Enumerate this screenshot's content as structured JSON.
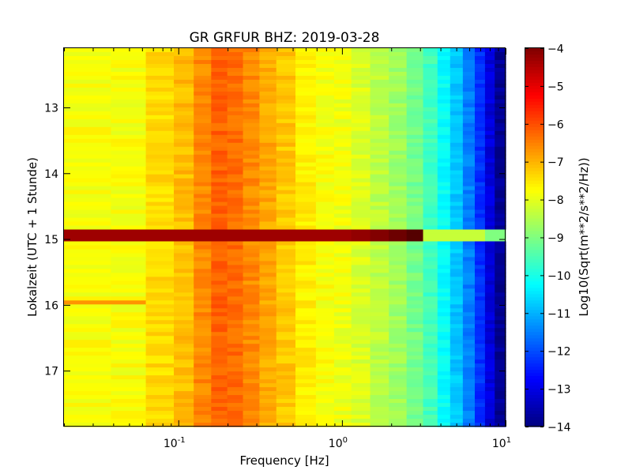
{
  "chart_data": {
    "type": "heatmap",
    "title": "GR GRFUR BHZ: 2019-03-28",
    "xlabel": "Frequency [Hz]",
    "ylabel": "Lokalzeit (UTC + 1 Stunde)",
    "x_scale": "log",
    "xlim": [
      0.02,
      10
    ],
    "x_ticks": [
      {
        "value": 0.1,
        "base": "10",
        "exp": "-1"
      },
      {
        "value": 1,
        "base": "10",
        "exp": "0"
      },
      {
        "value": 10,
        "base": "10",
        "exp": "1"
      }
    ],
    "ylim": [
      12.1,
      17.85
    ],
    "y_inverted": true,
    "y_ticks": [
      {
        "value": 13,
        "label": "13"
      },
      {
        "value": 14,
        "label": "14"
      },
      {
        "value": 15,
        "label": "15"
      },
      {
        "value": 16,
        "label": "16"
      },
      {
        "value": 17,
        "label": "17"
      }
    ],
    "colorbar": {
      "label": "Log10(Sqrt(m**2/s**2/Hz))",
      "range": [
        -14,
        -4
      ],
      "colormap": "jet",
      "ticks": [
        {
          "value": -4,
          "label": "−4"
        },
        {
          "value": -5,
          "label": "−5"
        },
        {
          "value": -6,
          "label": "−6"
        },
        {
          "value": -7,
          "label": "−7"
        },
        {
          "value": -8,
          "label": "−8"
        },
        {
          "value": -9,
          "label": "−9"
        },
        {
          "value": -10,
          "label": "−10"
        },
        {
          "value": -11,
          "label": "−11"
        },
        {
          "value": -12,
          "label": "−12"
        },
        {
          "value": -13,
          "label": "−13"
        },
        {
          "value": -14,
          "label": "−14"
        }
      ]
    },
    "frequency_bins_hz": [
      0.03,
      0.05,
      0.08,
      0.11,
      0.14,
      0.18,
      0.22,
      0.28,
      0.35,
      0.45,
      0.6,
      0.8,
      1.0,
      1.3,
      1.7,
      2.2,
      2.8,
      3.5,
      4.2,
      5.0,
      6.0,
      7.0,
      8.0,
      9.2
    ],
    "typical_spectrum_log10": [
      -7.8,
      -7.8,
      -7.4,
      -7.1,
      -6.6,
      -6.2,
      -6.3,
      -6.6,
      -6.9,
      -7.2,
      -7.6,
      -7.8,
      -7.9,
      -8.1,
      -8.4,
      -8.7,
      -9.1,
      -9.6,
      -10.2,
      -10.8,
      -11.5,
      -12.3,
      -13.1,
      -13.8
    ],
    "events": [
      {
        "time_start": 14.85,
        "time_end": 15.05,
        "description_values": {
          "low_freq_level": -4.3,
          "freq_fade_hz": 3.0
        }
      },
      {
        "time_start": 15.92,
        "time_end": 16.0,
        "description_values": {
          "low_freq_level": -6.7,
          "max_freq_hz": 0.06
        }
      }
    ],
    "grid": false
  }
}
